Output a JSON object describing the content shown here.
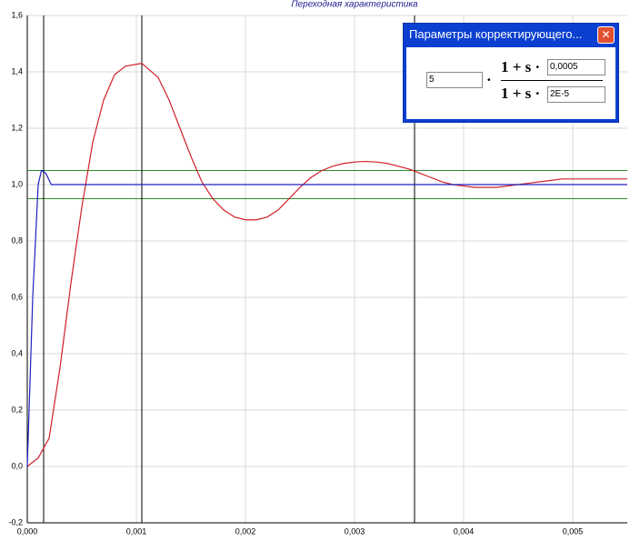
{
  "chart_data": {
    "type": "line",
    "title": "Переходная характеристика",
    "xlim": [
      0,
      0.0055
    ],
    "ylim": [
      -0.2,
      1.6
    ],
    "grid": true,
    "xticks": [
      {
        "value": 0,
        "label": "0,000"
      },
      {
        "value": 0.001,
        "label": "0,001"
      },
      {
        "value": 0.002,
        "label": "0,002"
      },
      {
        "value": 0.003,
        "label": "0,003"
      },
      {
        "value": 0.004,
        "label": "0,004"
      },
      {
        "value": 0.005,
        "label": "0,005"
      }
    ],
    "yticks": [
      {
        "value": -0.2,
        "label": "-0,2"
      },
      {
        "value": 0,
        "label": "0,0"
      },
      {
        "value": 0.2,
        "label": "0,2"
      },
      {
        "value": 0.4,
        "label": "0,4"
      },
      {
        "value": 0.6,
        "label": "0,6"
      },
      {
        "value": 0.8,
        "label": "0,8"
      },
      {
        "value": 1,
        "label": "1,0"
      },
      {
        "value": 1.2,
        "label": "1,2"
      },
      {
        "value": 1.4,
        "label": "1,4"
      },
      {
        "value": 1.6,
        "label": "1,6"
      }
    ],
    "reference_lines": {
      "color": "#2e8b2e",
      "values": [
        1.05,
        0.95
      ]
    },
    "marker_lines": {
      "color": "#000000",
      "values": [
        0.00015,
        0.00105,
        0.00355
      ]
    },
    "series": [
      {
        "color": "#d0202a",
        "x": [
          0,
          0.0001,
          0.0002,
          0.0003,
          0.0004,
          0.0005,
          0.0006,
          0.0007,
          0.0008,
          0.0009,
          0.00105,
          0.0012,
          0.0013,
          0.0014,
          0.0015,
          0.0016,
          0.0017,
          0.0018,
          0.0019,
          0.002,
          0.0021,
          0.0022,
          0.0023,
          0.0024,
          0.0025,
          0.0026,
          0.0027,
          0.0028,
          0.0029,
          0.003,
          0.0031,
          0.0032,
          0.0033,
          0.0034,
          0.0035,
          0.0036,
          0.0037,
          0.0038,
          0.0039,
          0.004,
          0.0041,
          0.0042,
          0.0043,
          0.0044,
          0.0045,
          0.0046,
          0.0047,
          0.0048,
          0.0049,
          0.005,
          0.0055
        ],
        "values": [
          0,
          0.03,
          0.1,
          0.35,
          0.65,
          0.92,
          1.15,
          1.3,
          1.39,
          1.42,
          1.43,
          1.38,
          1.3,
          1.2,
          1.1,
          1.01,
          0.95,
          0.91,
          0.885,
          0.875,
          0.875,
          0.885,
          0.91,
          0.95,
          0.99,
          1.025,
          1.05,
          1.065,
          1.075,
          1.08,
          1.082,
          1.08,
          1.075,
          1.065,
          1.055,
          1.04,
          1.025,
          1.01,
          1.0,
          0.995,
          0.99,
          0.99,
          0.99,
          0.995,
          1.0,
          1.005,
          1.01,
          1.015,
          1.02,
          1.02,
          1.02
        ]
      },
      {
        "color": "#2020c0",
        "x": [
          0,
          5e-05,
          0.0001,
          0.00013,
          0.00017,
          0.00022,
          0.0055
        ],
        "values": [
          0,
          0.6,
          1.0,
          1.05,
          1.04,
          1.0,
          1.0
        ]
      }
    ]
  },
  "dialog": {
    "title": "Параметры корректирующего...",
    "gain": "5",
    "multiply": "·",
    "numerator": "1 + s ·",
    "numerator_value": "0,0005",
    "denominator": "1 + s ·",
    "denominator_value": "2E-5"
  }
}
